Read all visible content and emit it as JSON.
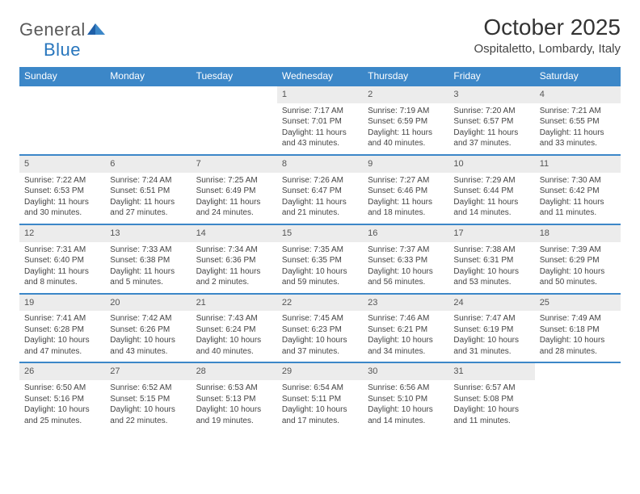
{
  "brand": {
    "part1": "General",
    "part2": "Blue"
  },
  "title": "October 2025",
  "location": "Ospitaletto, Lombardy, Italy",
  "colors": {
    "header_bg": "#3c87c8",
    "header_text": "#ffffff",
    "daynum_bg": "#ececec",
    "row_border": "#3c87c8",
    "body_text": "#444444",
    "brand_gray": "#5a5a5a",
    "brand_blue": "#2876bd",
    "background": "#ffffff"
  },
  "typography": {
    "title_fontsize": 28,
    "location_fontsize": 15,
    "header_fontsize": 12,
    "cell_fontsize": 10,
    "daynum_fontsize": 11
  },
  "day_headers": [
    "Sunday",
    "Monday",
    "Tuesday",
    "Wednesday",
    "Thursday",
    "Friday",
    "Saturday"
  ],
  "weeks": [
    [
      null,
      null,
      null,
      {
        "d": "1",
        "sr": "Sunrise: 7:17 AM",
        "ss": "Sunset: 7:01 PM",
        "dl1": "Daylight: 11 hours",
        "dl2": "and 43 minutes."
      },
      {
        "d": "2",
        "sr": "Sunrise: 7:19 AM",
        "ss": "Sunset: 6:59 PM",
        "dl1": "Daylight: 11 hours",
        "dl2": "and 40 minutes."
      },
      {
        "d": "3",
        "sr": "Sunrise: 7:20 AM",
        "ss": "Sunset: 6:57 PM",
        "dl1": "Daylight: 11 hours",
        "dl2": "and 37 minutes."
      },
      {
        "d": "4",
        "sr": "Sunrise: 7:21 AM",
        "ss": "Sunset: 6:55 PM",
        "dl1": "Daylight: 11 hours",
        "dl2": "and 33 minutes."
      }
    ],
    [
      {
        "d": "5",
        "sr": "Sunrise: 7:22 AM",
        "ss": "Sunset: 6:53 PM",
        "dl1": "Daylight: 11 hours",
        "dl2": "and 30 minutes."
      },
      {
        "d": "6",
        "sr": "Sunrise: 7:24 AM",
        "ss": "Sunset: 6:51 PM",
        "dl1": "Daylight: 11 hours",
        "dl2": "and 27 minutes."
      },
      {
        "d": "7",
        "sr": "Sunrise: 7:25 AM",
        "ss": "Sunset: 6:49 PM",
        "dl1": "Daylight: 11 hours",
        "dl2": "and 24 minutes."
      },
      {
        "d": "8",
        "sr": "Sunrise: 7:26 AM",
        "ss": "Sunset: 6:47 PM",
        "dl1": "Daylight: 11 hours",
        "dl2": "and 21 minutes."
      },
      {
        "d": "9",
        "sr": "Sunrise: 7:27 AM",
        "ss": "Sunset: 6:46 PM",
        "dl1": "Daylight: 11 hours",
        "dl2": "and 18 minutes."
      },
      {
        "d": "10",
        "sr": "Sunrise: 7:29 AM",
        "ss": "Sunset: 6:44 PM",
        "dl1": "Daylight: 11 hours",
        "dl2": "and 14 minutes."
      },
      {
        "d": "11",
        "sr": "Sunrise: 7:30 AM",
        "ss": "Sunset: 6:42 PM",
        "dl1": "Daylight: 11 hours",
        "dl2": "and 11 minutes."
      }
    ],
    [
      {
        "d": "12",
        "sr": "Sunrise: 7:31 AM",
        "ss": "Sunset: 6:40 PM",
        "dl1": "Daylight: 11 hours",
        "dl2": "and 8 minutes."
      },
      {
        "d": "13",
        "sr": "Sunrise: 7:33 AM",
        "ss": "Sunset: 6:38 PM",
        "dl1": "Daylight: 11 hours",
        "dl2": "and 5 minutes."
      },
      {
        "d": "14",
        "sr": "Sunrise: 7:34 AM",
        "ss": "Sunset: 6:36 PM",
        "dl1": "Daylight: 11 hours",
        "dl2": "and 2 minutes."
      },
      {
        "d": "15",
        "sr": "Sunrise: 7:35 AM",
        "ss": "Sunset: 6:35 PM",
        "dl1": "Daylight: 10 hours",
        "dl2": "and 59 minutes."
      },
      {
        "d": "16",
        "sr": "Sunrise: 7:37 AM",
        "ss": "Sunset: 6:33 PM",
        "dl1": "Daylight: 10 hours",
        "dl2": "and 56 minutes."
      },
      {
        "d": "17",
        "sr": "Sunrise: 7:38 AM",
        "ss": "Sunset: 6:31 PM",
        "dl1": "Daylight: 10 hours",
        "dl2": "and 53 minutes."
      },
      {
        "d": "18",
        "sr": "Sunrise: 7:39 AM",
        "ss": "Sunset: 6:29 PM",
        "dl1": "Daylight: 10 hours",
        "dl2": "and 50 minutes."
      }
    ],
    [
      {
        "d": "19",
        "sr": "Sunrise: 7:41 AM",
        "ss": "Sunset: 6:28 PM",
        "dl1": "Daylight: 10 hours",
        "dl2": "and 47 minutes."
      },
      {
        "d": "20",
        "sr": "Sunrise: 7:42 AM",
        "ss": "Sunset: 6:26 PM",
        "dl1": "Daylight: 10 hours",
        "dl2": "and 43 minutes."
      },
      {
        "d": "21",
        "sr": "Sunrise: 7:43 AM",
        "ss": "Sunset: 6:24 PM",
        "dl1": "Daylight: 10 hours",
        "dl2": "and 40 minutes."
      },
      {
        "d": "22",
        "sr": "Sunrise: 7:45 AM",
        "ss": "Sunset: 6:23 PM",
        "dl1": "Daylight: 10 hours",
        "dl2": "and 37 minutes."
      },
      {
        "d": "23",
        "sr": "Sunrise: 7:46 AM",
        "ss": "Sunset: 6:21 PM",
        "dl1": "Daylight: 10 hours",
        "dl2": "and 34 minutes."
      },
      {
        "d": "24",
        "sr": "Sunrise: 7:47 AM",
        "ss": "Sunset: 6:19 PM",
        "dl1": "Daylight: 10 hours",
        "dl2": "and 31 minutes."
      },
      {
        "d": "25",
        "sr": "Sunrise: 7:49 AM",
        "ss": "Sunset: 6:18 PM",
        "dl1": "Daylight: 10 hours",
        "dl2": "and 28 minutes."
      }
    ],
    [
      {
        "d": "26",
        "sr": "Sunrise: 6:50 AM",
        "ss": "Sunset: 5:16 PM",
        "dl1": "Daylight: 10 hours",
        "dl2": "and 25 minutes."
      },
      {
        "d": "27",
        "sr": "Sunrise: 6:52 AM",
        "ss": "Sunset: 5:15 PM",
        "dl1": "Daylight: 10 hours",
        "dl2": "and 22 minutes."
      },
      {
        "d": "28",
        "sr": "Sunrise: 6:53 AM",
        "ss": "Sunset: 5:13 PM",
        "dl1": "Daylight: 10 hours",
        "dl2": "and 19 minutes."
      },
      {
        "d": "29",
        "sr": "Sunrise: 6:54 AM",
        "ss": "Sunset: 5:11 PM",
        "dl1": "Daylight: 10 hours",
        "dl2": "and 17 minutes."
      },
      {
        "d": "30",
        "sr": "Sunrise: 6:56 AM",
        "ss": "Sunset: 5:10 PM",
        "dl1": "Daylight: 10 hours",
        "dl2": "and 14 minutes."
      },
      {
        "d": "31",
        "sr": "Sunrise: 6:57 AM",
        "ss": "Sunset: 5:08 PM",
        "dl1": "Daylight: 10 hours",
        "dl2": "and 11 minutes."
      },
      null
    ]
  ]
}
